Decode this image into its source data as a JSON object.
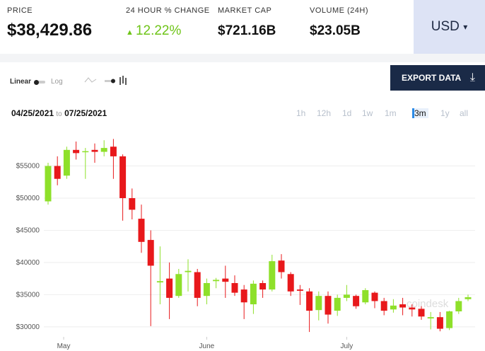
{
  "header": {
    "stats": [
      {
        "label": "PRICE",
        "value": "$38,429.86"
      },
      {
        "label": "24 HOUR % CHANGE",
        "value": "12.22%"
      },
      {
        "label": "MARKET CAP",
        "value": "$721.16B"
      },
      {
        "label": "VOLUME (24H)",
        "value": "$23.05B"
      }
    ],
    "currency": "USD"
  },
  "toolbar": {
    "scale_options": [
      "Linear",
      "Log"
    ],
    "export": "EXPORT DATA",
    "date_from": "04/25/2021",
    "date_sep": "to",
    "date_to": "07/25/2021",
    "ranges": [
      "1h",
      "12h",
      "1d",
      "1w",
      "1m",
      "3m",
      "1y",
      "all"
    ],
    "active_range": "3m"
  },
  "chart_data": {
    "type": "candlestick",
    "watermark": "coindesk",
    "open": [
      49500,
      55000,
      53500,
      57500,
      57200,
      57500,
      57200,
      58000,
      56500,
      50000,
      46800,
      43500,
      36900,
      37500,
      34800,
      38500,
      38500,
      34800,
      37100,
      37500,
      36800,
      35800,
      33500,
      36800,
      35800,
      40300,
      38200,
      35800,
      35500,
      32600,
      34800,
      32500,
      34500,
      34800,
      33800,
      35300,
      34000,
      32700,
      33500,
      33000,
      32800,
      31300,
      31500,
      29800,
      32400,
      34300
    ],
    "close": [
      55000,
      53000,
      57500,
      57000,
      57300,
      57200,
      57800,
      56500,
      50000,
      48200,
      43200,
      39500,
      37100,
      34500,
      38200,
      38700,
      34500,
      36800,
      37300,
      37000,
      35300,
      33800,
      36700,
      35800,
      40200,
      38500,
      35500,
      35600,
      32500,
      34800,
      31900,
      34500,
      35000,
      33200,
      35700,
      34000,
      32500,
      33300,
      33000,
      32700,
      31600,
      31500,
      29700,
      32400,
      34000,
      34600
    ],
    "high": [
      55500,
      56500,
      58000,
      58800,
      57800,
      58500,
      59000,
      59200,
      56800,
      51500,
      49000,
      45000,
      42500,
      40000,
      39000,
      40500,
      39000,
      37500,
      37600,
      39500,
      38000,
      36500,
      37200,
      37200,
      41200,
      41300,
      38500,
      36500,
      36000,
      35500,
      35500,
      35000,
      36500,
      35000,
      36000,
      35500,
      34500,
      34300,
      34500,
      33500,
      33200,
      32300,
      32300,
      32500,
      34500,
      35000
    ],
    "low": [
      49000,
      52000,
      53000,
      56000,
      53000,
      55500,
      56500,
      53000,
      46500,
      46700,
      41500,
      30100,
      33500,
      31200,
      34500,
      35500,
      33200,
      33500,
      36000,
      34500,
      34800,
      31200,
      32000,
      34500,
      35500,
      37500,
      34800,
      33400,
      29200,
      31000,
      30500,
      31700,
      34000,
      32800,
      33500,
      32900,
      31800,
      32200,
      31800,
      31600,
      31100,
      29600,
      29300,
      29500,
      32000,
      34000
    ],
    "up_color": "#8ee02a",
    "down_color": "#e8181b",
    "ylim": [
      28000,
      61000
    ],
    "yticks": [
      {
        "value": 30000,
        "label": "$30000"
      },
      {
        "value": 35000,
        "label": "$35000"
      },
      {
        "value": 40000,
        "label": "$40000"
      },
      {
        "value": 45000,
        "label": "$45000"
      },
      {
        "value": 50000,
        "label": "$50000"
      },
      {
        "value": 55000,
        "label": "$55000"
      }
    ],
    "xticks": [
      {
        "value": 1.67,
        "label": "May"
      },
      {
        "value": 17,
        "label": "June"
      },
      {
        "value": 32,
        "label": "July"
      }
    ],
    "grid": true
  }
}
